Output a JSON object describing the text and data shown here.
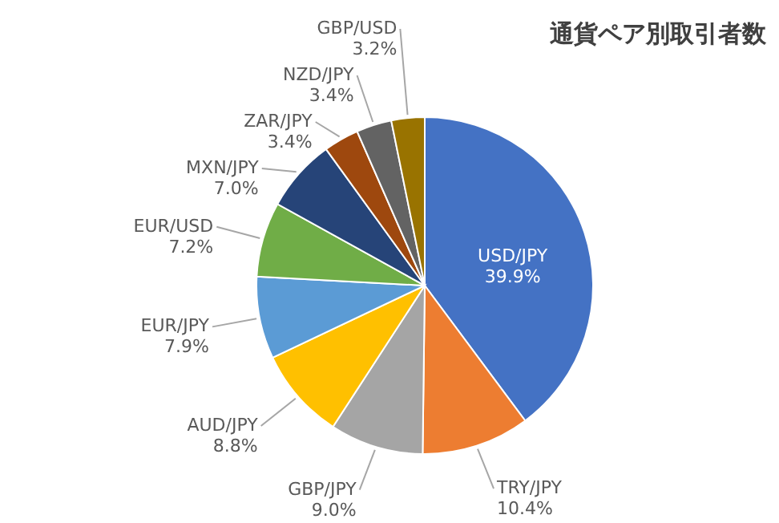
{
  "chart_data": {
    "type": "pie",
    "title": "通貨ペア別取引者数",
    "categories": [
      "USD/JPY",
      "TRY/JPY",
      "GBP/JPY",
      "AUD/JPY",
      "EUR/JPY",
      "EUR/USD",
      "MXN/JPY",
      "ZAR/JPY",
      "NZD/JPY",
      "GBP/USD"
    ],
    "values": [
      39.9,
      10.4,
      9.0,
      8.8,
      7.9,
      7.2,
      7.0,
      3.4,
      3.4,
      3.2
    ],
    "value_labels": [
      "39.9%",
      "10.4%",
      "9.0%",
      "8.8%",
      "7.9%",
      "7.2%",
      "7.0%",
      "3.4%",
      "3.4%",
      "3.2%"
    ],
    "colors": [
      "#4472c4",
      "#ed7d31",
      "#a5a5a5",
      "#ffc000",
      "#5b9bd5",
      "#70ad47",
      "#264478",
      "#9e480e",
      "#636363",
      "#997300"
    ]
  }
}
